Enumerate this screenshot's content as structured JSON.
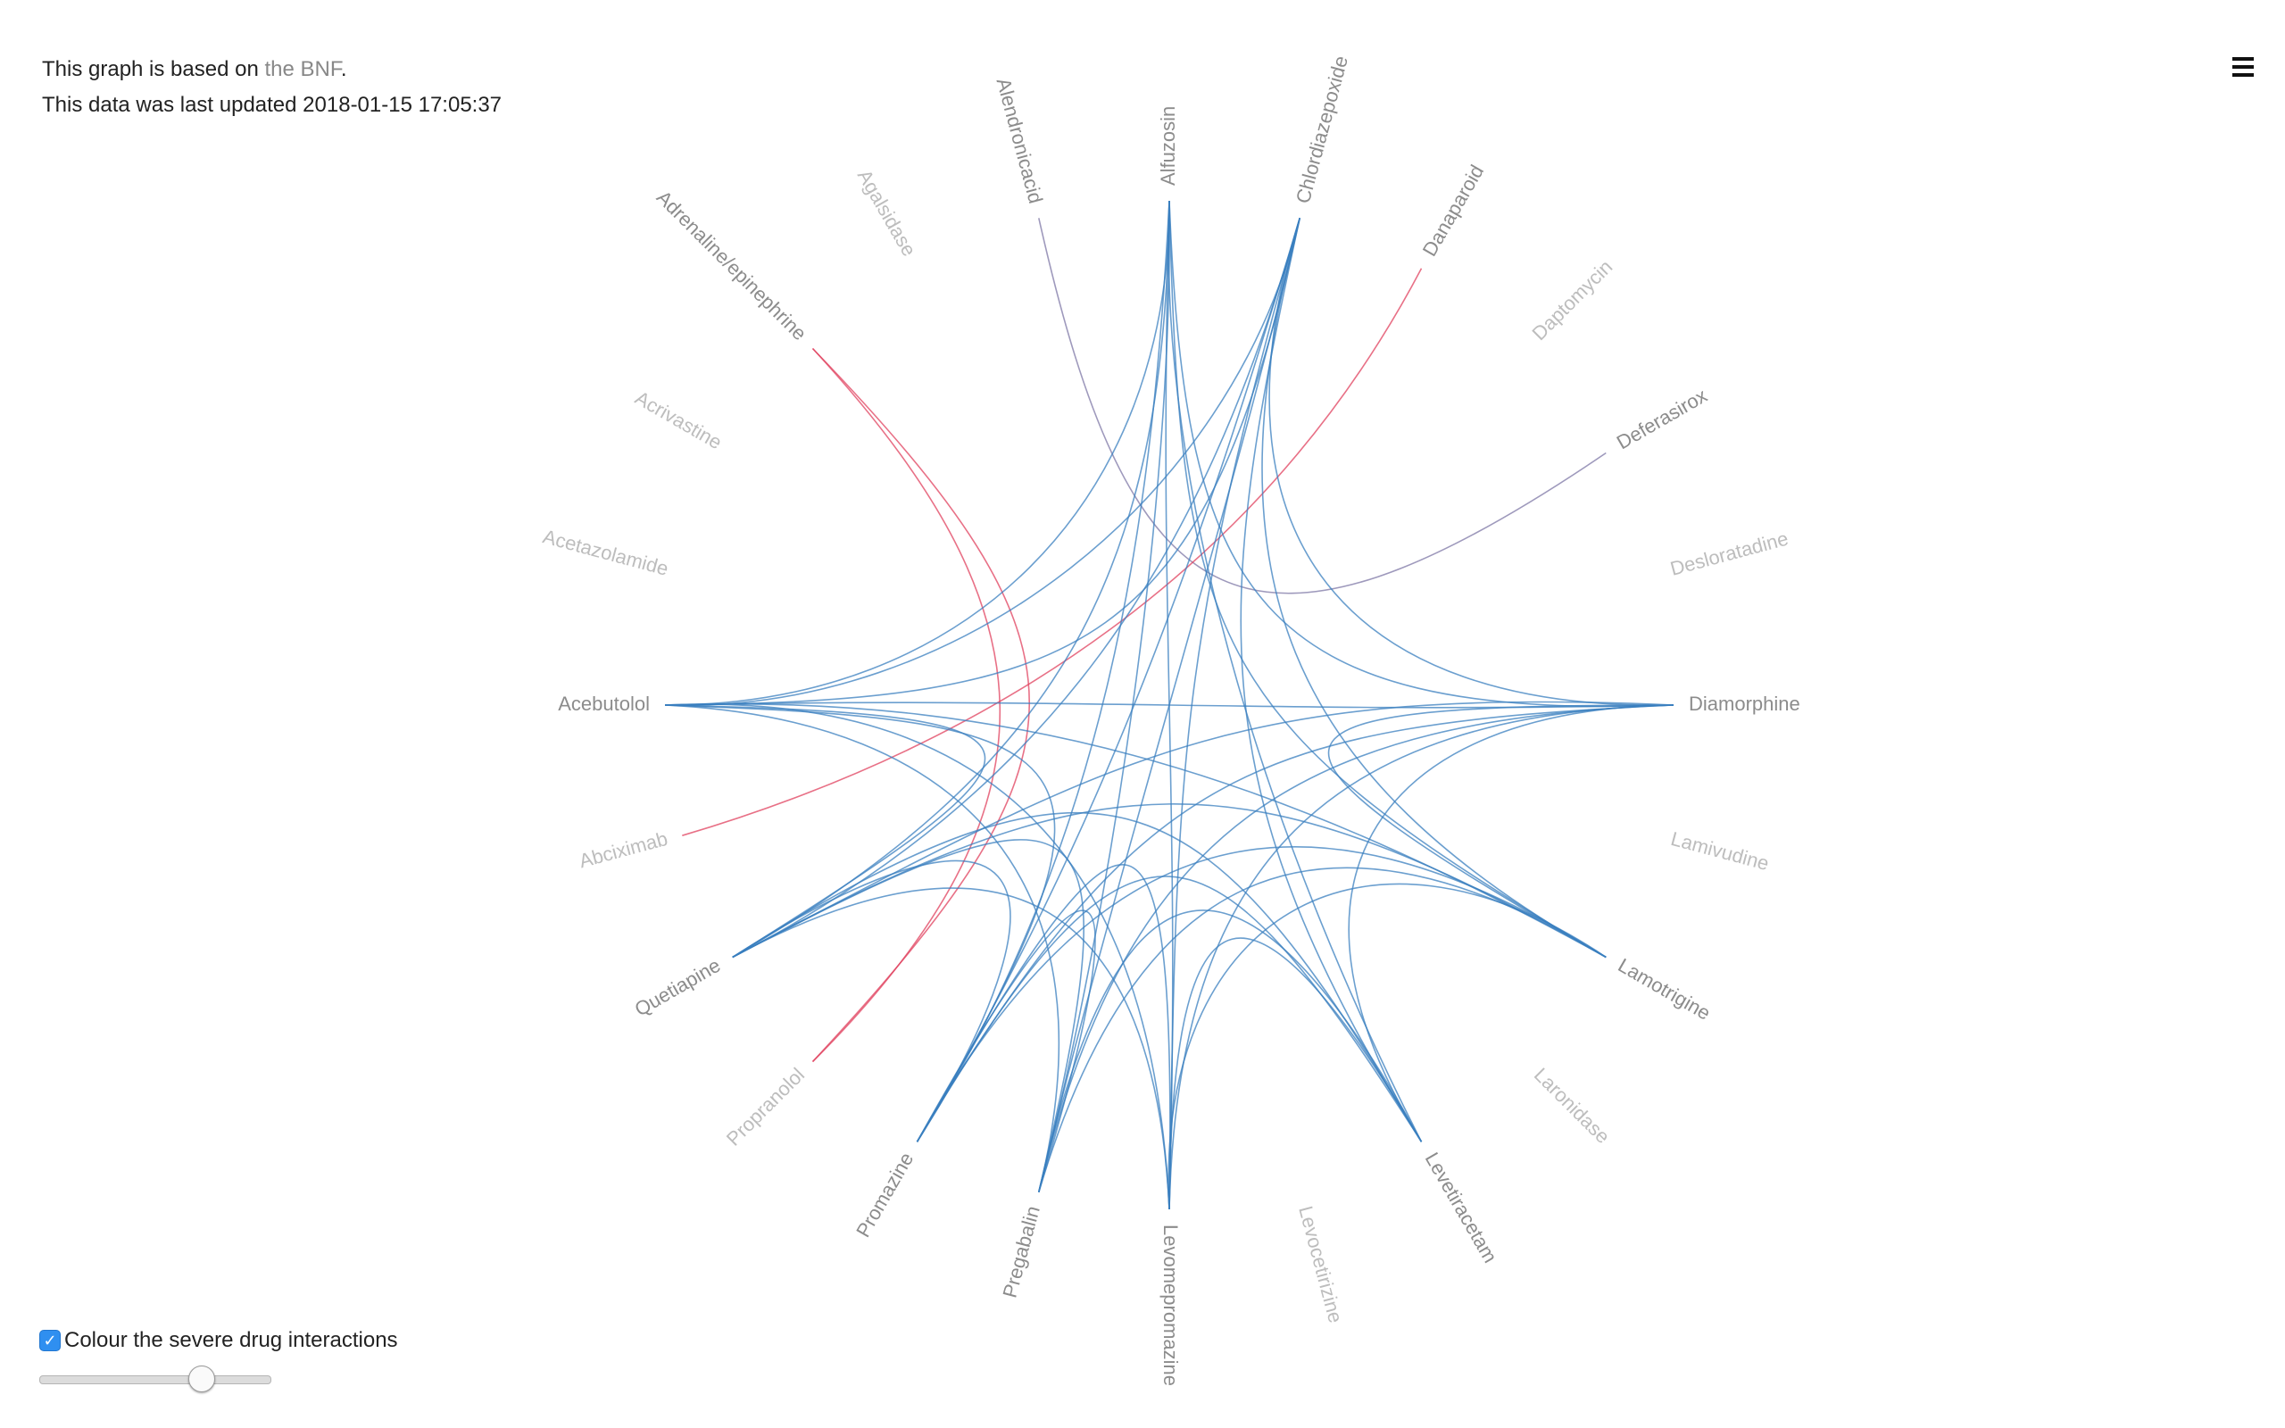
{
  "info": {
    "line1_prefix": "This graph is based on ",
    "line1_link": "the BNF",
    "line1_suffix": ".",
    "line2": "This data was last updated 2018-01-15 17:05:37"
  },
  "menu": {
    "icon": "hamburger-menu-icon"
  },
  "controls": {
    "severe_label": "Colour the severe drug interactions",
    "severe_checked": true,
    "slider_value": 0.7
  },
  "colors": {
    "normal": "#3a7fbf",
    "severe": "#e0405e",
    "mixed": "#7d77a6",
    "inactive_label": "#bdbdbd",
    "active_label": "#8c8c8c"
  },
  "nodes": [
    {
      "id": "acebutolol",
      "label": "Acebutolol",
      "active": true
    },
    {
      "id": "acetazolamide",
      "label": "Acetazolamide",
      "active": false
    },
    {
      "id": "acrivastine",
      "label": "Acrivastine",
      "active": false
    },
    {
      "id": "adrenaline",
      "label": "Adrenaline/epinephrine",
      "active": true
    },
    {
      "id": "agalsidase",
      "label": "Agalsidase",
      "active": false
    },
    {
      "id": "alendronic",
      "label": "Alendronicacid",
      "active": true
    },
    {
      "id": "alfuzosin",
      "label": "Alfuzosin",
      "active": true
    },
    {
      "id": "chlordiazepoxide",
      "label": "Chlordiazepoxide",
      "active": true
    },
    {
      "id": "danaparoid",
      "label": "Danaparoid",
      "active": true
    },
    {
      "id": "daptomycin",
      "label": "Daptomycin",
      "active": false
    },
    {
      "id": "deferasirox",
      "label": "Deferasirox",
      "active": true
    },
    {
      "id": "desloratadine",
      "label": "Desloratadine",
      "active": false
    },
    {
      "id": "diamorphine",
      "label": "Diamorphine",
      "active": true
    },
    {
      "id": "lamivudine",
      "label": "Lamivudine",
      "active": false
    },
    {
      "id": "lamotrigine",
      "label": "Lamotrigine",
      "active": true
    },
    {
      "id": "laronidase",
      "label": "Laronidase",
      "active": false
    },
    {
      "id": "levetiracetam",
      "label": "Levetiracetam",
      "active": true
    },
    {
      "id": "levocetirizine",
      "label": "Levocetirizine",
      "active": false
    },
    {
      "id": "levomepromazine",
      "label": "Levomepromazine",
      "active": true
    },
    {
      "id": "pregabalin",
      "label": "Pregabalin",
      "active": true
    },
    {
      "id": "promazine",
      "label": "Promazine",
      "active": true
    },
    {
      "id": "propranolol",
      "label": "Propranolol",
      "active": false
    },
    {
      "id": "quetiapine",
      "label": "Quetiapine",
      "active": true
    },
    {
      "id": "abciximab",
      "label": "Abciximab",
      "active": false
    }
  ],
  "links": [
    {
      "source": "alendronic",
      "target": "deferasirox",
      "type": "mixed"
    },
    {
      "source": "adrenaline",
      "target": "propranolol",
      "type": "severe"
    },
    {
      "source": "adrenaline",
      "target": "propranolol",
      "type": "severe"
    },
    {
      "source": "danaparoid",
      "target": "abciximab",
      "type": "severe"
    },
    {
      "source": "acebutolol",
      "target": "alfuzosin",
      "type": "normal"
    },
    {
      "source": "acebutolol",
      "target": "chlordiazepoxide",
      "type": "normal"
    },
    {
      "source": "acebutolol",
      "target": "diamorphine",
      "type": "normal"
    },
    {
      "source": "acebutolol",
      "target": "lamotrigine",
      "type": "normal"
    },
    {
      "source": "acebutolol",
      "target": "levomepromazine",
      "type": "normal"
    },
    {
      "source": "acebutolol",
      "target": "pregabalin",
      "type": "normal"
    },
    {
      "source": "acebutolol",
      "target": "promazine",
      "type": "normal"
    },
    {
      "source": "acebutolol",
      "target": "quetiapine",
      "type": "normal"
    },
    {
      "source": "alfuzosin",
      "target": "quetiapine",
      "type": "normal"
    },
    {
      "source": "alfuzosin",
      "target": "promazine",
      "type": "normal"
    },
    {
      "source": "alfuzosin",
      "target": "pregabalin",
      "type": "normal"
    },
    {
      "source": "alfuzosin",
      "target": "levomepromazine",
      "type": "normal"
    },
    {
      "source": "alfuzosin",
      "target": "diamorphine",
      "type": "normal"
    },
    {
      "source": "chlordiazepoxide",
      "target": "quetiapine",
      "type": "normal"
    },
    {
      "source": "chlordiazepoxide",
      "target": "promazine",
      "type": "normal"
    },
    {
      "source": "chlordiazepoxide",
      "target": "pregabalin",
      "type": "normal"
    },
    {
      "source": "chlordiazepoxide",
      "target": "levomepromazine",
      "type": "normal"
    },
    {
      "source": "chlordiazepoxide",
      "target": "levetiracetam",
      "type": "normal"
    },
    {
      "source": "chlordiazepoxide",
      "target": "lamotrigine",
      "type": "normal"
    },
    {
      "source": "chlordiazepoxide",
      "target": "diamorphine",
      "type": "normal"
    },
    {
      "source": "chlordiazepoxide",
      "target": "acebutolol",
      "type": "normal"
    },
    {
      "source": "diamorphine",
      "target": "quetiapine",
      "type": "normal"
    },
    {
      "source": "diamorphine",
      "target": "promazine",
      "type": "normal"
    },
    {
      "source": "diamorphine",
      "target": "pregabalin",
      "type": "normal"
    },
    {
      "source": "diamorphine",
      "target": "levomepromazine",
      "type": "normal"
    },
    {
      "source": "diamorphine",
      "target": "levetiracetam",
      "type": "normal"
    },
    {
      "source": "diamorphine",
      "target": "lamotrigine",
      "type": "normal"
    },
    {
      "source": "lamotrigine",
      "target": "quetiapine",
      "type": "normal"
    },
    {
      "source": "lamotrigine",
      "target": "promazine",
      "type": "normal"
    },
    {
      "source": "lamotrigine",
      "target": "pregabalin",
      "type": "normal"
    },
    {
      "source": "lamotrigine",
      "target": "levomepromazine",
      "type": "normal"
    },
    {
      "source": "levetiracetam",
      "target": "quetiapine",
      "type": "normal"
    },
    {
      "source": "levetiracetam",
      "target": "promazine",
      "type": "normal"
    },
    {
      "source": "levetiracetam",
      "target": "pregabalin",
      "type": "normal"
    },
    {
      "source": "levetiracetam",
      "target": "levomepromazine",
      "type": "normal"
    },
    {
      "source": "levomepromazine",
      "target": "quetiapine",
      "type": "normal"
    },
    {
      "source": "levomepromazine",
      "target": "promazine",
      "type": "normal"
    },
    {
      "source": "pregabalin",
      "target": "quetiapine",
      "type": "normal"
    },
    {
      "source": "pregabalin",
      "target": "promazine",
      "type": "normal"
    },
    {
      "source": "promazine",
      "target": "quetiapine",
      "type": "normal"
    },
    {
      "source": "alfuzosin",
      "target": "levetiracetam",
      "type": "normal"
    },
    {
      "source": "alfuzosin",
      "target": "lamotrigine",
      "type": "normal"
    }
  ]
}
